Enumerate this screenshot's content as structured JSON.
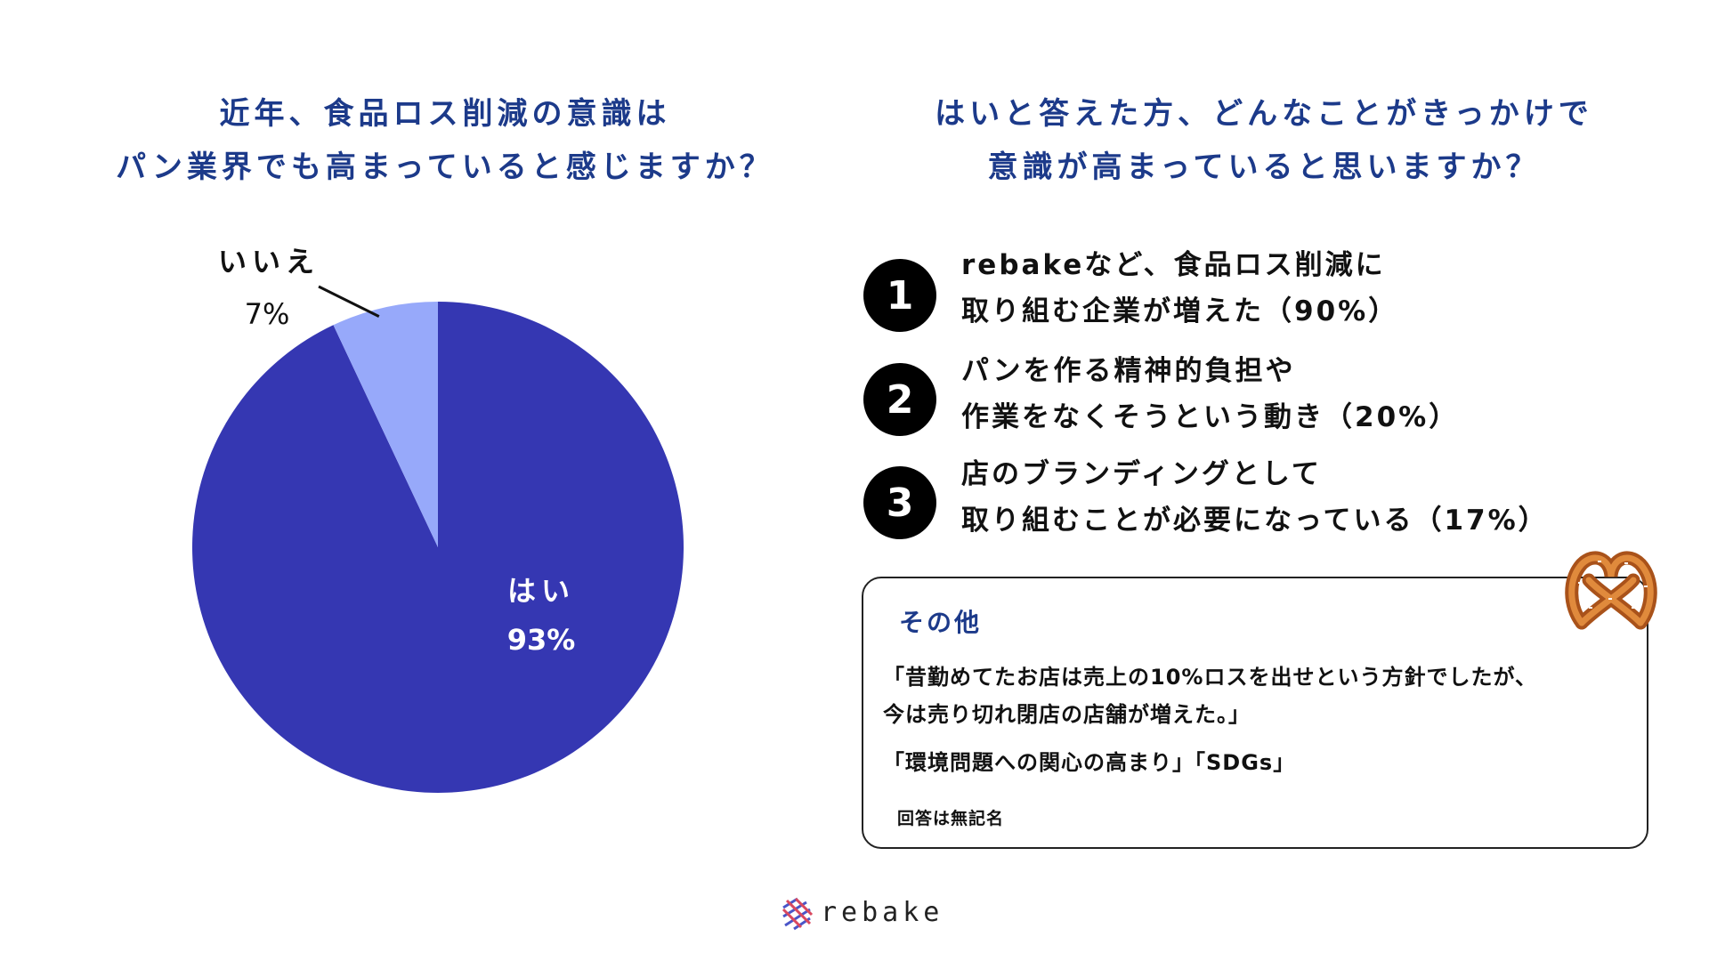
{
  "left_heading": [
    "近年、食品ロス削減の意識は",
    "パン業界でも高まっていると感じますか？"
  ],
  "right_heading": [
    "はいと答えた方、どんなことがきっかけで",
    "意識が高まっていると思いますか？"
  ],
  "chart_data": {
    "type": "pie",
    "slices": [
      {
        "label": "はい",
        "value": 93,
        "value_label": "93%",
        "color": "#3537b2"
      },
      {
        "label": "いいえ",
        "value": 7,
        "value_label": "7%",
        "color": "#97a9fa"
      }
    ]
  },
  "reasons": [
    {
      "rank": "1",
      "lines": [
        "rebakeなど、食品ロス削減に",
        "取り組む企業が増えた（90%）"
      ]
    },
    {
      "rank": "2",
      "lines": [
        "パンを作る精神的負担や",
        "作業をなくそうという動き（20%）"
      ]
    },
    {
      "rank": "3",
      "lines": [
        "店のブランディングとして",
        "取り組むことが必要になっている（17%）"
      ]
    }
  ],
  "others": {
    "title": "その他",
    "quote1": [
      "「昔勤めてたお店は売上の10%ロスを出せという方針でしたが、",
      "今は売り切れ閉店の店舗が増えた。」"
    ],
    "quote2": "「環境問題への関心の高まり」「SDGs」",
    "note": "回答は無記名"
  },
  "logo": {
    "text": "rebake",
    "icon": "rebake-grid-logo-icon"
  },
  "decoration_icon": "pretzel-icon",
  "colors": {
    "heading": "#1c3a8a",
    "yes": "#3537b2",
    "no": "#97a9fa"
  }
}
